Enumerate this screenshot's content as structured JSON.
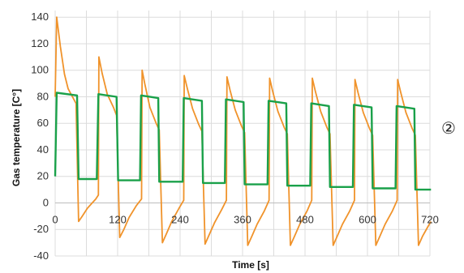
{
  "annotation": "②",
  "colors": {
    "orange": "#f0932b",
    "green": "#1aa14a",
    "grid": "#dcdcdc"
  },
  "chart_data": {
    "type": "line",
    "xlabel": "Time [s]",
    "ylabel": "Gas temperature [C°]",
    "xlim": [
      0,
      720
    ],
    "ylim": [
      -40,
      145
    ],
    "xticks": [
      0,
      120,
      240,
      360,
      480,
      600,
      720
    ],
    "yticks": [
      -40,
      -20,
      0,
      20,
      40,
      60,
      80,
      100,
      120,
      140
    ],
    "grid": true,
    "legend": "none",
    "series": [
      {
        "color": "#f0932b",
        "points": [
          [
            0,
            80
          ],
          [
            3,
            140
          ],
          [
            10,
            118
          ],
          [
            18,
            97
          ],
          [
            25,
            86
          ],
          [
            40,
            75
          ],
          [
            45,
            -14
          ],
          [
            52,
            -10
          ],
          [
            62,
            -4
          ],
          [
            78,
            3
          ],
          [
            83,
            6
          ],
          [
            84,
            110
          ],
          [
            90,
            98
          ],
          [
            100,
            82
          ],
          [
            112,
            72
          ],
          [
            118,
            66
          ],
          [
            124,
            -26
          ],
          [
            132,
            -20
          ],
          [
            142,
            -11
          ],
          [
            156,
            -2
          ],
          [
            166,
            3
          ],
          [
            167,
            100
          ],
          [
            172,
            90
          ],
          [
            182,
            72
          ],
          [
            194,
            60
          ],
          [
            200,
            55
          ],
          [
            206,
            -30
          ],
          [
            214,
            -23
          ],
          [
            224,
            -14
          ],
          [
            238,
            -4
          ],
          [
            247,
            2
          ],
          [
            248,
            96
          ],
          [
            254,
            86
          ],
          [
            264,
            71
          ],
          [
            276,
            59
          ],
          [
            282,
            54
          ],
          [
            288,
            -31
          ],
          [
            296,
            -24
          ],
          [
            306,
            -15
          ],
          [
            320,
            -5
          ],
          [
            329,
            2
          ],
          [
            330,
            95
          ],
          [
            336,
            85
          ],
          [
            346,
            70
          ],
          [
            358,
            58
          ],
          [
            364,
            53
          ],
          [
            370,
            -32
          ],
          [
            378,
            -25
          ],
          [
            388,
            -16
          ],
          [
            402,
            -6
          ],
          [
            411,
            2
          ],
          [
            412,
            94
          ],
          [
            418,
            84
          ],
          [
            428,
            69
          ],
          [
            440,
            57
          ],
          [
            446,
            52
          ],
          [
            452,
            -32
          ],
          [
            460,
            -25
          ],
          [
            470,
            -16
          ],
          [
            484,
            -6
          ],
          [
            493,
            2
          ],
          [
            494,
            94
          ],
          [
            500,
            84
          ],
          [
            510,
            69
          ],
          [
            522,
            57
          ],
          [
            528,
            52
          ],
          [
            534,
            -32
          ],
          [
            542,
            -25
          ],
          [
            552,
            -16
          ],
          [
            566,
            -6
          ],
          [
            575,
            2
          ],
          [
            576,
            93
          ],
          [
            582,
            83
          ],
          [
            592,
            68
          ],
          [
            604,
            56
          ],
          [
            610,
            51
          ],
          [
            616,
            -32
          ],
          [
            624,
            -25
          ],
          [
            634,
            -16
          ],
          [
            648,
            -6
          ],
          [
            657,
            2
          ],
          [
            658,
            93
          ],
          [
            664,
            83
          ],
          [
            674,
            68
          ],
          [
            686,
            56
          ],
          [
            692,
            51
          ],
          [
            698,
            -32
          ],
          [
            706,
            -25
          ],
          [
            716,
            -18
          ],
          [
            722,
            -14
          ]
        ]
      },
      {
        "color": "#1aa14a",
        "points": [
          [
            0,
            20
          ],
          [
            3,
            83
          ],
          [
            42,
            81
          ],
          [
            45,
            18
          ],
          [
            80,
            18
          ],
          [
            83,
            82
          ],
          [
            118,
            80
          ],
          [
            121,
            17
          ],
          [
            163,
            17
          ],
          [
            165,
            81
          ],
          [
            198,
            79
          ],
          [
            200,
            16
          ],
          [
            245,
            16
          ],
          [
            247,
            79
          ],
          [
            282,
            77
          ],
          [
            284,
            15
          ],
          [
            326,
            15
          ],
          [
            328,
            78
          ],
          [
            362,
            76
          ],
          [
            364,
            14
          ],
          [
            408,
            14
          ],
          [
            410,
            77
          ],
          [
            444,
            75
          ],
          [
            446,
            13
          ],
          [
            490,
            13
          ],
          [
            492,
            75
          ],
          [
            526,
            73
          ],
          [
            528,
            12
          ],
          [
            572,
            12
          ],
          [
            574,
            74
          ],
          [
            608,
            72
          ],
          [
            610,
            11
          ],
          [
            654,
            11
          ],
          [
            656,
            73
          ],
          [
            690,
            71
          ],
          [
            692,
            10
          ],
          [
            722,
            10
          ]
        ]
      }
    ]
  }
}
